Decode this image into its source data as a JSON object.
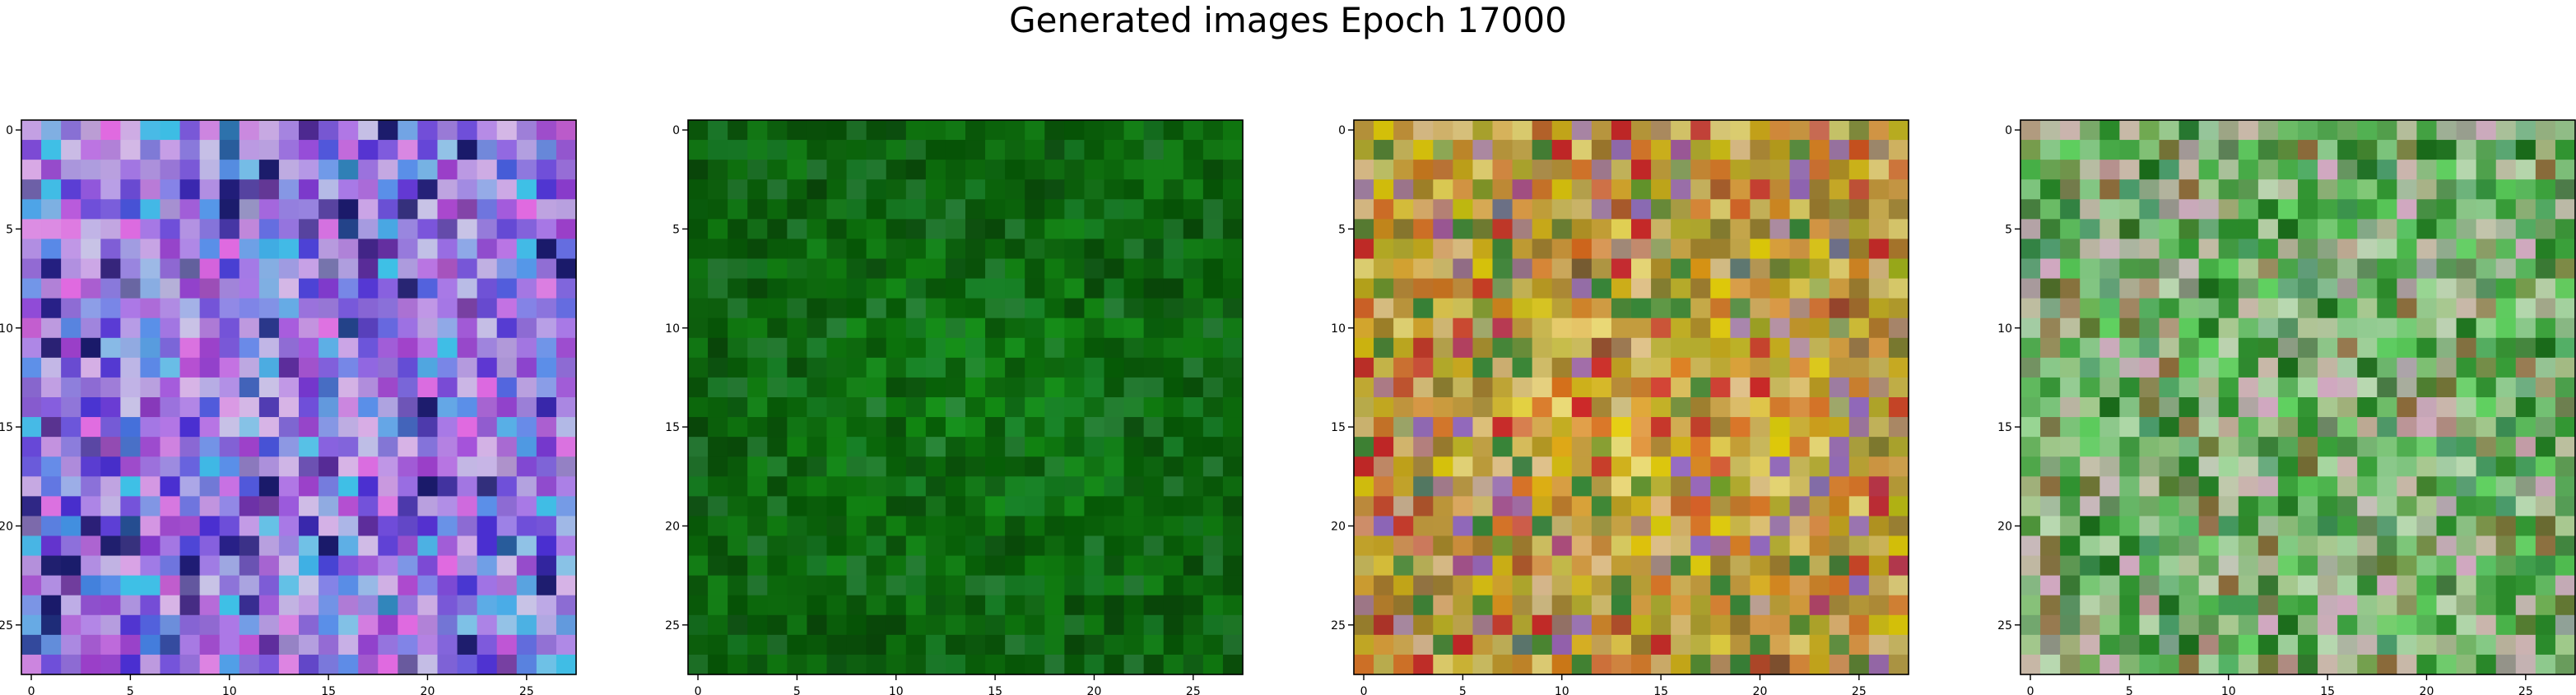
{
  "figure": {
    "title": "Generated images Epoch 17000"
  },
  "chart_data": [
    {
      "type": "heatmap",
      "grid": [
        28,
        28
      ],
      "x_ticks": [
        "0",
        "5",
        "10",
        "15",
        "20",
        "25"
      ],
      "y_ticks": [
        "0",
        "5",
        "10",
        "15",
        "20",
        "25"
      ],
      "xlim": [
        -0.5,
        27.5
      ],
      "ylim": [
        27.5,
        -0.5
      ],
      "palette": [
        "#b9a0df",
        "#8d6bd3",
        "#d7b4e6",
        "#6f4fd9",
        "#e06ae0",
        "#4a2fd0",
        "#a879e6",
        "#c8c3e6",
        "#3ec0e6",
        "#1a1a6a",
        "#5a8fe8",
        "#9a3fc8"
      ],
      "seed": 11,
      "noise": 0.55,
      "vignette": 0.0
    },
    {
      "type": "heatmap",
      "grid": [
        28,
        28
      ],
      "x_ticks": [
        "0",
        "5",
        "10",
        "15",
        "20",
        "25"
      ],
      "y_ticks": [
        "0",
        "5",
        "10",
        "15",
        "20",
        "25"
      ],
      "xlim": [
        -0.5,
        27.5
      ],
      "ylim": [
        27.5,
        -0.5
      ],
      "palette": [
        "#0b6b0b",
        "#0e7a0e",
        "#0a5a0a",
        "#128a12",
        "#076107",
        "#1a8a2a",
        "#0f6f0f",
        "#2a8a3a",
        "#0a4f0a",
        "#17951a"
      ],
      "seed": 23,
      "noise": 0.35,
      "vignette": 0.25
    },
    {
      "type": "heatmap",
      "grid": [
        28,
        28
      ],
      "x_ticks": [
        "0",
        "5",
        "10",
        "15",
        "20",
        "25"
      ],
      "y_ticks": [
        "0",
        "5",
        "10",
        "15",
        "20",
        "25"
      ],
      "xlim": [
        -0.5,
        27.5
      ],
      "ylim": [
        27.5,
        -0.5
      ],
      "palette": [
        "#e8d20a",
        "#d4b41a",
        "#e6a24a",
        "#c8a040",
        "#f0e07a",
        "#b8b030",
        "#e07a2a",
        "#d0c060",
        "#a08030",
        "#e8c890",
        "#9a6fc8",
        "#3a8a3a",
        "#d02a2a"
      ],
      "seed": 37,
      "noise": 0.5,
      "vignette": 0.15
    },
    {
      "type": "heatmap",
      "grid": [
        28,
        28
      ],
      "x_ticks": [
        "0",
        "5",
        "10",
        "15",
        "20",
        "25"
      ],
      "y_ticks": [
        "0",
        "5",
        "10",
        "15",
        "20",
        "25"
      ],
      "xlim": [
        -0.5,
        27.5
      ],
      "ylim": [
        27.5,
        -0.5
      ],
      "palette": [
        "#5ab85a",
        "#3aa03a",
        "#8ac88a",
        "#c8b8a8",
        "#d0a8c0",
        "#2a8a2a",
        "#a8c890",
        "#60d060",
        "#b8d8b0",
        "#4a9a6a",
        "#8a6a3a",
        "#1a6a1a"
      ],
      "seed": 51,
      "noise": 0.5,
      "vignette": 0.0
    }
  ]
}
